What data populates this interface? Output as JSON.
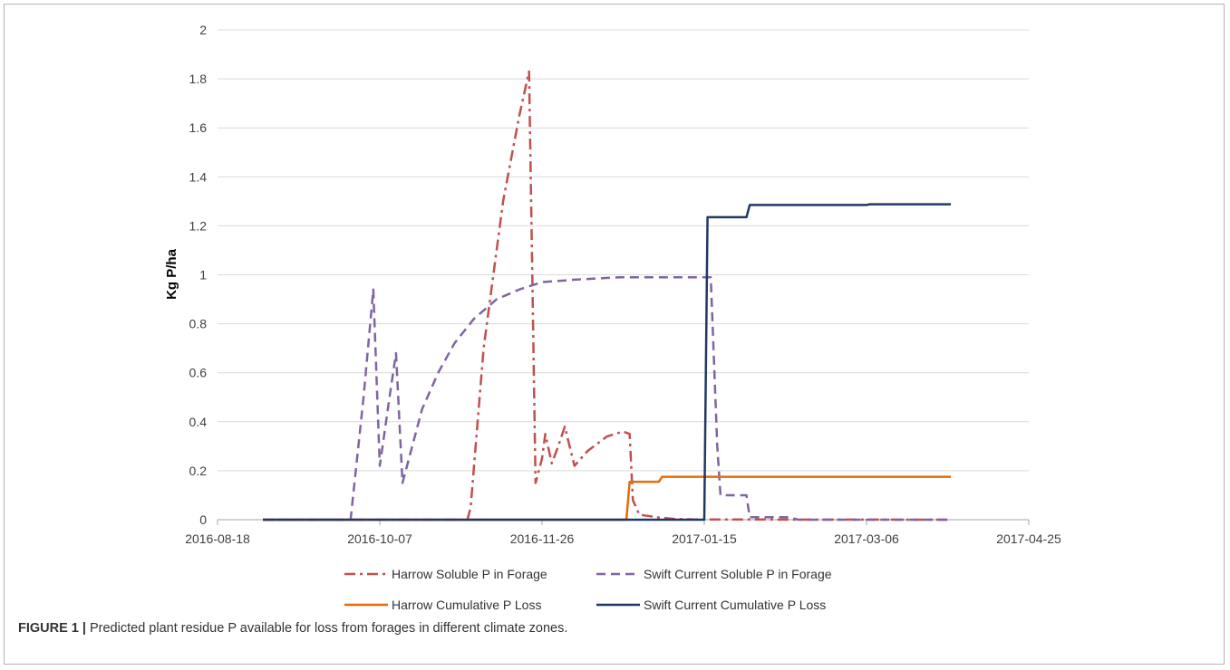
{
  "caption": {
    "label": "FIGURE 1 |",
    "text": " Predicted plant residue P available for loss from forages in different climate zones."
  },
  "chart_data": {
    "type": "line",
    "title": "",
    "ylabel": "Kg P/ha",
    "xlabel": "",
    "ylim": [
      0,
      2
    ],
    "y_ticks": [
      "0",
      "0.2",
      "0.4",
      "0.6",
      "0.8",
      "1",
      "1.2",
      "1.4",
      "1.6",
      "1.8",
      "2"
    ],
    "xlim": [
      "2016-08-18",
      "2017-04-25"
    ],
    "x_ticks": [
      "2016-08-18",
      "2016-10-07",
      "2016-11-26",
      "2017-01-15",
      "2017-03-06",
      "2017-04-25"
    ],
    "grid": "horizontal",
    "legend_position": "bottom",
    "series": [
      {
        "name": "Harrow Soluble P in Forage",
        "color": "#c0504d",
        "dash": "dash-dot",
        "points": [
          [
            "2016-09-01",
            0
          ],
          [
            "2016-11-03",
            0
          ],
          [
            "2016-11-04",
            0.05
          ],
          [
            "2016-11-08",
            0.7
          ],
          [
            "2016-11-14",
            1.3
          ],
          [
            "2016-11-19",
            1.65
          ],
          [
            "2016-11-22",
            1.83
          ],
          [
            "2016-11-23",
            1.0
          ],
          [
            "2016-11-24",
            0.15
          ],
          [
            "2016-11-26",
            0.25
          ],
          [
            "2016-11-27",
            0.35
          ],
          [
            "2016-11-29",
            0.23
          ],
          [
            "2016-12-01",
            0.3
          ],
          [
            "2016-12-03",
            0.38
          ],
          [
            "2016-12-06",
            0.22
          ],
          [
            "2016-12-10",
            0.28
          ],
          [
            "2016-12-16",
            0.34
          ],
          [
            "2016-12-21",
            0.36
          ],
          [
            "2016-12-23",
            0.35
          ],
          [
            "2016-12-24",
            0.08
          ],
          [
            "2016-12-26",
            0.02
          ],
          [
            "2016-12-29",
            0.015
          ],
          [
            "2016-12-31",
            0.01
          ],
          [
            "2017-01-06",
            0.003
          ],
          [
            "2017-01-12",
            0.001
          ],
          [
            "2017-04-01",
            0
          ]
        ]
      },
      {
        "name": "Swift Current Soluble P in Forage",
        "color": "#8064a2",
        "dash": "dash",
        "points": [
          [
            "2016-09-01",
            0
          ],
          [
            "2016-09-28",
            0
          ],
          [
            "2016-10-02",
            0.5
          ],
          [
            "2016-10-05",
            0.94
          ],
          [
            "2016-10-07",
            0.22
          ],
          [
            "2016-10-10",
            0.5
          ],
          [
            "2016-10-12",
            0.68
          ],
          [
            "2016-10-14",
            0.15
          ],
          [
            "2016-10-17",
            0.3
          ],
          [
            "2016-10-20",
            0.45
          ],
          [
            "2016-10-25",
            0.6
          ],
          [
            "2016-10-30",
            0.72
          ],
          [
            "2016-11-05",
            0.82
          ],
          [
            "2016-11-12",
            0.9
          ],
          [
            "2016-11-19",
            0.94
          ],
          [
            "2016-11-26",
            0.97
          ],
          [
            "2016-12-06",
            0.98
          ],
          [
            "2016-12-20",
            0.99
          ],
          [
            "2017-01-05",
            0.99
          ],
          [
            "2017-01-17",
            0.99
          ],
          [
            "2017-01-19",
            0.3
          ],
          [
            "2017-01-20",
            0.1
          ],
          [
            "2017-01-28",
            0.1
          ],
          [
            "2017-01-29",
            0.01
          ],
          [
            "2017-02-10",
            0.01
          ],
          [
            "2017-02-13",
            0
          ],
          [
            "2017-04-01",
            0
          ]
        ]
      },
      {
        "name": "Harrow Cumulative P Loss",
        "color": "#e46c0a",
        "dash": "solid",
        "points": [
          [
            "2016-09-01",
            0
          ],
          [
            "2016-12-22",
            0
          ],
          [
            "2016-12-23",
            0.155
          ],
          [
            "2017-01-01",
            0.155
          ],
          [
            "2017-01-02",
            0.175
          ],
          [
            "2017-04-01",
            0.175
          ]
        ]
      },
      {
        "name": "Swift Current Cumulative P Loss",
        "color": "#1f3864",
        "dash": "solid",
        "points": [
          [
            "2016-09-01",
            0
          ],
          [
            "2017-01-15",
            0
          ],
          [
            "2017-01-16",
            1.235
          ],
          [
            "2017-01-28",
            1.235
          ],
          [
            "2017-01-29",
            1.285
          ],
          [
            "2017-03-06",
            1.285
          ],
          [
            "2017-03-07",
            1.288
          ],
          [
            "2017-04-01",
            1.288
          ]
        ]
      }
    ]
  }
}
